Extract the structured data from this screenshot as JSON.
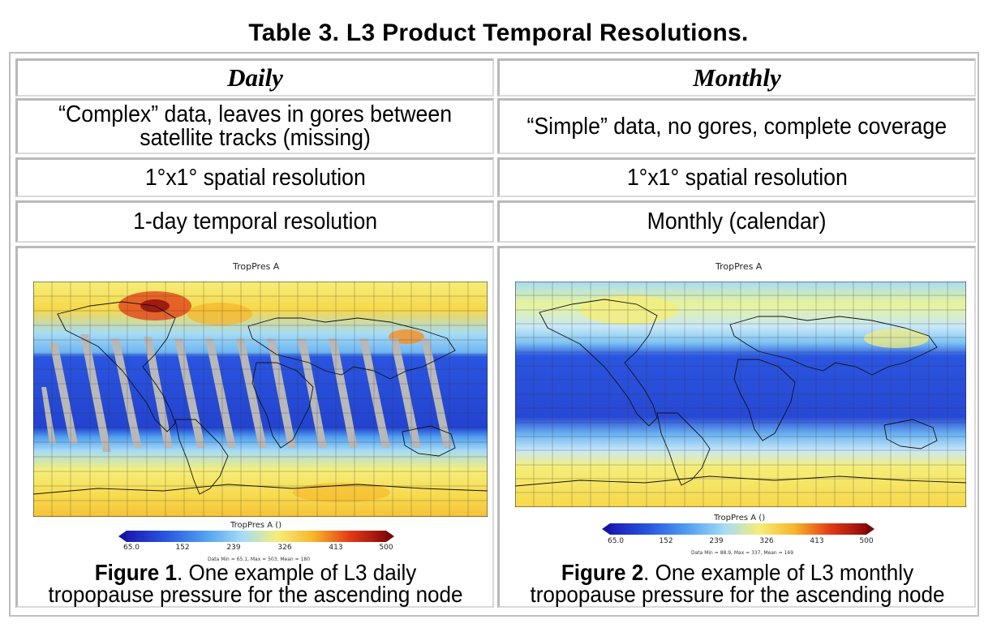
{
  "title": "Table 3.  L3 Product Temporal Resolutions.",
  "columns": {
    "daily": "Daily",
    "monthly": "Monthly"
  },
  "rows": [
    {
      "daily": "“Complex” data, leaves in gores between satellite tracks (missing)",
      "daily_line1": "“Complex” data, leaves in gores between",
      "daily_line2": "satellite tracks (missing)",
      "monthly": "“Simple” data, no gores, complete coverage"
    },
    {
      "daily": "1°x1° spatial resolution",
      "monthly": "1°x1° spatial resolution"
    },
    {
      "daily": "1-day temporal resolution",
      "monthly": "Monthly (calendar)"
    }
  ],
  "figures": [
    {
      "map_title": "TropPres A",
      "colorbar_title": "TropPres A ()",
      "ticks": [
        "65.0",
        "152",
        "239",
        "326",
        "413",
        "500"
      ],
      "stats": "Data Min = 65.1, Max = 503, Mean = 180",
      "caption_label": "Figure 1",
      "caption_line1_rest": ". One example of L3 daily",
      "caption_line2": "tropopause pressure for the ascending node"
    },
    {
      "map_title": "TropPres A",
      "colorbar_title": "TropPres A ()",
      "ticks": [
        "65.0",
        "152",
        "239",
        "326",
        "413",
        "500"
      ],
      "stats": "Data Min = 88.9, Max = 337, Mean = 169",
      "caption_label": "Figure 2",
      "caption_line1_rest": ". One example of L3 monthly",
      "caption_line2": "tropopause pressure for the ascending node"
    }
  ],
  "colorscale": [
    "#1a1ab4",
    "#2a55e0",
    "#4f9ef0",
    "#a6dcf5",
    "#f5ee7a",
    "#f7b52a",
    "#e23a16",
    "#8c0a0a"
  ],
  "gore_color": "#b8b8b8"
}
